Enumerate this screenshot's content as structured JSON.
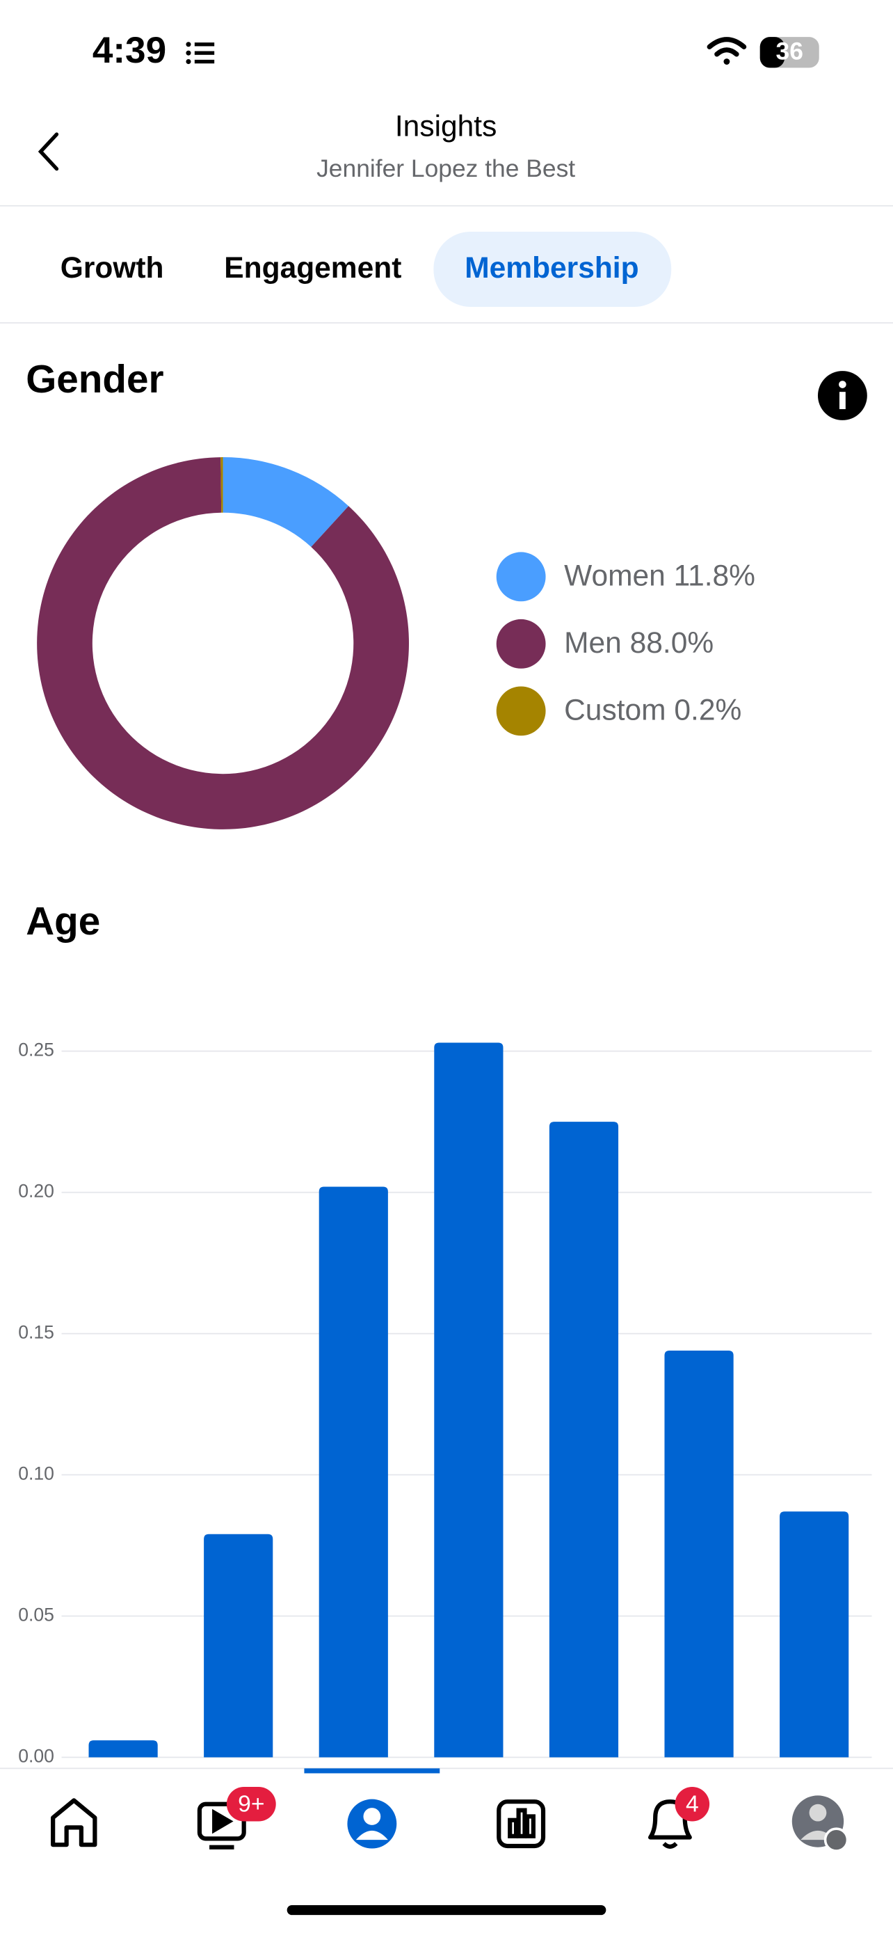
{
  "status_bar": {
    "time": "4:39",
    "battery": "36"
  },
  "header": {
    "title": "Insights",
    "subtitle": "Jennifer Lopez the Best"
  },
  "tabs": [
    "Growth",
    "Engagement",
    "Membership"
  ],
  "active_tab": "Membership",
  "nav_badges": {
    "video": "9+",
    "notifications": "4"
  },
  "chart_data": [
    {
      "type": "donut",
      "title": "Gender",
      "categories": [
        "Women",
        "Men",
        "Custom"
      ],
      "values": [
        11.8,
        88.0,
        0.2
      ],
      "value_labels": [
        "11.8%",
        "88.0%",
        "0.2%"
      ],
      "colors": [
        "#4a9eff",
        "#772d57",
        "#a58400"
      ],
      "legend": "right"
    },
    {
      "type": "bar",
      "title": "Age",
      "categories": [
        null,
        null,
        null,
        null,
        null,
        null,
        null
      ],
      "values": [
        0.006,
        0.079,
        0.202,
        0.253,
        0.225,
        0.144,
        0.087
      ],
      "color": "#0064d2",
      "ylim": [
        0,
        0.26
      ],
      "yticks": [
        {
          "value": 0,
          "label": "0.00"
        },
        {
          "value": 0.05,
          "label": "0.05"
        },
        {
          "value": 0.1,
          "label": "0.10"
        },
        {
          "value": 0.15,
          "label": "0.15"
        },
        {
          "value": 0.2,
          "label": "0.20"
        },
        {
          "value": 0.25,
          "label": "0.25"
        }
      ],
      "grid": true
    }
  ]
}
